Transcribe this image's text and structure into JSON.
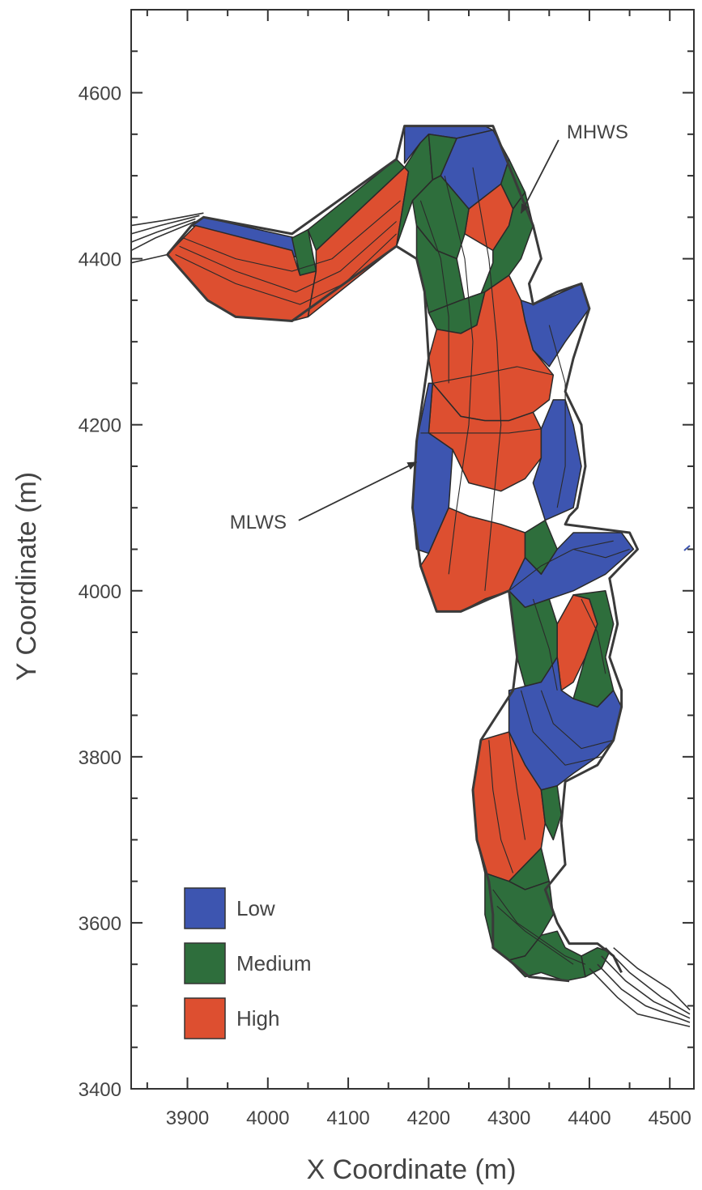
{
  "chart_data": {
    "type": "heatmap",
    "xlabel": "X Coordinate (m)",
    "ylabel": "Y Coordinate (m)",
    "xlim": [
      3830,
      4530
    ],
    "ylim": [
      3400,
      4700
    ],
    "xticks": [
      3900,
      4000,
      4100,
      4200,
      4300,
      4400,
      4500
    ],
    "yticks": [
      3400,
      3600,
      3800,
      4000,
      4200,
      4400,
      4600
    ],
    "categories": [
      "Low",
      "Medium",
      "High"
    ],
    "colors": {
      "Low": "#3d55b0",
      "Medium": "#2e6e3c",
      "High": "#dd4f30"
    },
    "legend_position": "bottom-left",
    "annotations": [
      {
        "text": "MHWS",
        "x": 4410,
        "y": 4545,
        "arrow_to": [
          4315,
          4455
        ]
      },
      {
        "text": "MLWS",
        "x": 3988,
        "y": 4075,
        "arrow_to": [
          4185,
          4155
        ]
      }
    ],
    "zones": [
      {
        "level": "Low",
        "points": [
          [
            3920,
            4450
          ],
          [
            4035,
            4425
          ],
          [
            4040,
            4400
          ],
          [
            3990,
            4420
          ],
          [
            3905,
            4440
          ]
        ]
      },
      {
        "level": "Medium",
        "points": [
          [
            4030,
            4425
          ],
          [
            4050,
            4435
          ],
          [
            4060,
            4385
          ],
          [
            4040,
            4380
          ]
        ]
      },
      {
        "level": "High",
        "points": [
          [
            3910,
            4440
          ],
          [
            4030,
            4410
          ],
          [
            4040,
            4380
          ],
          [
            4060,
            4385
          ],
          [
            4050,
            4330
          ],
          [
            4030,
            4325
          ],
          [
            3960,
            4330
          ],
          [
            3925,
            4350
          ],
          [
            3875,
            4405
          ]
        ]
      },
      {
        "level": "Medium",
        "points": [
          [
            4050,
            4435
          ],
          [
            4160,
            4520
          ],
          [
            4170,
            4510
          ],
          [
            4060,
            4410
          ]
        ]
      },
      {
        "level": "High",
        "points": [
          [
            4060,
            4410
          ],
          [
            4170,
            4510
          ],
          [
            4175,
            4505
          ],
          [
            4160,
            4415
          ],
          [
            4050,
            4330
          ],
          [
            4060,
            4385
          ]
        ]
      },
      {
        "level": "Medium",
        "points": [
          [
            4170,
            4510
          ],
          [
            4190,
            4540
          ],
          [
            4200,
            4550
          ],
          [
            4205,
            4495
          ],
          [
            4180,
            4470
          ],
          [
            4160,
            4415
          ],
          [
            4175,
            4505
          ]
        ]
      },
      {
        "level": "Low",
        "points": [
          [
            4170,
            4560
          ],
          [
            4270,
            4560
          ],
          [
            4280,
            4555
          ],
          [
            4235,
            4545
          ],
          [
            4200,
            4550
          ],
          [
            4190,
            4540
          ],
          [
            4170,
            4515
          ]
        ]
      },
      {
        "level": "Medium",
        "points": [
          [
            4200,
            4550
          ],
          [
            4235,
            4545
          ],
          [
            4215,
            4500
          ],
          [
            4205,
            4495
          ]
        ]
      },
      {
        "level": "Low",
        "points": [
          [
            4235,
            4545
          ],
          [
            4280,
            4555
          ],
          [
            4300,
            4520
          ],
          [
            4290,
            4490
          ],
          [
            4250,
            4460
          ],
          [
            4215,
            4500
          ]
        ]
      },
      {
        "level": "Medium",
        "points": [
          [
            4300,
            4520
          ],
          [
            4320,
            4480
          ],
          [
            4305,
            4460
          ],
          [
            4290,
            4490
          ]
        ]
      },
      {
        "level": "High",
        "points": [
          [
            4250,
            4460
          ],
          [
            4290,
            4490
          ],
          [
            4305,
            4460
          ],
          [
            4300,
            4440
          ],
          [
            4280,
            4410
          ],
          [
            4245,
            4430
          ]
        ]
      },
      {
        "level": "Medium",
        "points": [
          [
            4180,
            4470
          ],
          [
            4205,
            4495
          ],
          [
            4215,
            4500
          ],
          [
            4250,
            4460
          ],
          [
            4245,
            4430
          ],
          [
            4235,
            4400
          ],
          [
            4210,
            4410
          ],
          [
            4185,
            4440
          ]
        ]
      },
      {
        "level": "Medium",
        "points": [
          [
            4185,
            4440
          ],
          [
            4210,
            4410
          ],
          [
            4235,
            4400
          ],
          [
            4245,
            4350
          ],
          [
            4260,
            4345
          ],
          [
            4280,
            4395
          ],
          [
            4280,
            4410
          ],
          [
            4300,
            4440
          ],
          [
            4305,
            4460
          ],
          [
            4320,
            4480
          ],
          [
            4330,
            4440
          ],
          [
            4315,
            4400
          ],
          [
            4300,
            4380
          ],
          [
            4270,
            4360
          ],
          [
            4240,
            4350
          ],
          [
            4200,
            4335
          ],
          [
            4195,
            4360
          ],
          [
            4185,
            4400
          ]
        ]
      },
      {
        "level": "Medium",
        "points": [
          [
            4200,
            4335
          ],
          [
            4240,
            4350
          ],
          [
            4270,
            4360
          ],
          [
            4260,
            4320
          ],
          [
            4240,
            4310
          ],
          [
            4210,
            4315
          ]
        ]
      },
      {
        "level": "High",
        "points": [
          [
            4210,
            4315
          ],
          [
            4240,
            4310
          ],
          [
            4260,
            4320
          ],
          [
            4270,
            4360
          ],
          [
            4300,
            4380
          ],
          [
            4315,
            4350
          ],
          [
            4320,
            4325
          ],
          [
            4330,
            4290
          ],
          [
            4355,
            4260
          ],
          [
            4350,
            4230
          ],
          [
            4330,
            4215
          ],
          [
            4300,
            4205
          ],
          [
            4270,
            4205
          ],
          [
            4240,
            4210
          ],
          [
            4205,
            4250
          ],
          [
            4200,
            4280
          ]
        ]
      },
      {
        "level": "Low",
        "points": [
          [
            4315,
            4350
          ],
          [
            4330,
            4345
          ],
          [
            4355,
            4355
          ],
          [
            4390,
            4370
          ],
          [
            4400,
            4340
          ],
          [
            4370,
            4300
          ],
          [
            4350,
            4270
          ],
          [
            4330,
            4290
          ],
          [
            4320,
            4325
          ]
        ]
      },
      {
        "level": "High",
        "points": [
          [
            4205,
            4250
          ],
          [
            4240,
            4210
          ],
          [
            4270,
            4205
          ],
          [
            4300,
            4205
          ],
          [
            4330,
            4215
          ],
          [
            4340,
            4195
          ],
          [
            4340,
            4160
          ],
          [
            4320,
            4135
          ],
          [
            4290,
            4120
          ],
          [
            4250,
            4130
          ],
          [
            4230,
            4170
          ],
          [
            4200,
            4190
          ]
        ]
      },
      {
        "level": "Low",
        "points": [
          [
            4200,
            4250
          ],
          [
            4205,
            4250
          ],
          [
            4200,
            4190
          ],
          [
            4230,
            4170
          ],
          [
            4225,
            4100
          ],
          [
            4200,
            4045
          ],
          [
            4185,
            4050
          ],
          [
            4180,
            4100
          ],
          [
            4185,
            4180
          ]
        ]
      },
      {
        "level": "Low",
        "points": [
          [
            4340,
            4195
          ],
          [
            4355,
            4230
          ],
          [
            4370,
            4230
          ],
          [
            4380,
            4200
          ],
          [
            4390,
            4150
          ],
          [
            4380,
            4100
          ],
          [
            4345,
            4085
          ],
          [
            4330,
            4130
          ],
          [
            4340,
            4160
          ]
        ]
      },
      {
        "level": "High",
        "points": [
          [
            4200,
            4045
          ],
          [
            4225,
            4100
          ],
          [
            4250,
            4090
          ],
          [
            4290,
            4080
          ],
          [
            4320,
            4070
          ],
          [
            4320,
            4040
          ],
          [
            4300,
            4000
          ],
          [
            4270,
            3990
          ],
          [
            4240,
            3975
          ],
          [
            4210,
            3975
          ],
          [
            4190,
            4030
          ]
        ]
      },
      {
        "level": "Medium",
        "points": [
          [
            4320,
            4070
          ],
          [
            4345,
            4085
          ],
          [
            4360,
            4050
          ],
          [
            4340,
            4020
          ],
          [
            4320,
            4040
          ]
        ]
      },
      {
        "level": "Low",
        "points": [
          [
            4340,
            4020
          ],
          [
            4360,
            4050
          ],
          [
            4380,
            4070
          ],
          [
            4440,
            4070
          ],
          [
            4455,
            4050
          ],
          [
            4420,
            4020
          ],
          [
            4380,
            4000
          ],
          [
            4350,
            3990
          ],
          [
            4320,
            3980
          ],
          [
            4300,
            4000
          ],
          [
            4320,
            4040
          ]
        ]
      },
      {
        "level": "Medium",
        "points": [
          [
            4300,
            4000
          ],
          [
            4320,
            3980
          ],
          [
            4350,
            3990
          ],
          [
            4360,
            3960
          ],
          [
            4360,
            3920
          ],
          [
            4340,
            3890
          ],
          [
            4320,
            3885
          ],
          [
            4310,
            3920
          ],
          [
            4305,
            3960
          ]
        ]
      },
      {
        "level": "High",
        "points": [
          [
            4360,
            3960
          ],
          [
            4380,
            3995
          ],
          [
            4400,
            3990
          ],
          [
            4410,
            3960
          ],
          [
            4395,
            3920
          ],
          [
            4380,
            3890
          ],
          [
            4365,
            3880
          ],
          [
            4360,
            3920
          ]
        ]
      },
      {
        "level": "Medium",
        "points": [
          [
            4380,
            3995
          ],
          [
            4420,
            4000
          ],
          [
            4430,
            3960
          ],
          [
            4420,
            3920
          ],
          [
            4430,
            3880
          ],
          [
            4410,
            3860
          ],
          [
            4380,
            3870
          ],
          [
            4395,
            3920
          ],
          [
            4410,
            3960
          ],
          [
            4400,
            3990
          ]
        ]
      },
      {
        "level": "Low",
        "points": [
          [
            4300,
            3880
          ],
          [
            4340,
            3890
          ],
          [
            4360,
            3920
          ],
          [
            4365,
            3880
          ],
          [
            4380,
            3870
          ],
          [
            4410,
            3860
          ],
          [
            4430,
            3880
          ],
          [
            4440,
            3860
          ],
          [
            4430,
            3820
          ],
          [
            4410,
            3800
          ],
          [
            4380,
            3780
          ],
          [
            4360,
            3765
          ],
          [
            4340,
            3760
          ],
          [
            4320,
            3790
          ],
          [
            4300,
            3830
          ]
        ]
      },
      {
        "level": "High",
        "points": [
          [
            4300,
            3830
          ],
          [
            4320,
            3790
          ],
          [
            4340,
            3760
          ],
          [
            4345,
            3720
          ],
          [
            4340,
            3690
          ],
          [
            4320,
            3670
          ],
          [
            4300,
            3650
          ],
          [
            4270,
            3660
          ],
          [
            4260,
            3700
          ],
          [
            4255,
            3760
          ],
          [
            4265,
            3820
          ]
        ]
      },
      {
        "level": "Medium",
        "points": [
          [
            4340,
            3760
          ],
          [
            4360,
            3765
          ],
          [
            4365,
            3730
          ],
          [
            4355,
            3700
          ],
          [
            4345,
            3720
          ]
        ]
      },
      {
        "level": "Medium",
        "points": [
          [
            4320,
            3670
          ],
          [
            4340,
            3690
          ],
          [
            4350,
            3650
          ],
          [
            4320,
            3640
          ],
          [
            4300,
            3650
          ]
        ]
      },
      {
        "level": "Medium",
        "points": [
          [
            4270,
            3660
          ],
          [
            4300,
            3650
          ],
          [
            4320,
            3640
          ],
          [
            4350,
            3650
          ],
          [
            4355,
            3610
          ],
          [
            4340,
            3585
          ],
          [
            4320,
            3560
          ],
          [
            4300,
            3555
          ],
          [
            4280,
            3570
          ],
          [
            4270,
            3610
          ]
        ]
      },
      {
        "level": "Medium",
        "points": [
          [
            4300,
            3555
          ],
          [
            4320,
            3560
          ],
          [
            4340,
            3585
          ],
          [
            4360,
            3590
          ],
          [
            4370,
            3570
          ],
          [
            4390,
            3560
          ],
          [
            4395,
            3535
          ],
          [
            4370,
            3530
          ],
          [
            4340,
            3540
          ],
          [
            4320,
            3535
          ]
        ]
      },
      {
        "level": "Medium",
        "points": [
          [
            4390,
            3560
          ],
          [
            4410,
            3570
          ],
          [
            4425,
            3565
          ],
          [
            4415,
            3545
          ],
          [
            4395,
            3535
          ]
        ]
      }
    ]
  },
  "annotations": {
    "mhws": "MHWS",
    "mlws": "MLWS"
  }
}
